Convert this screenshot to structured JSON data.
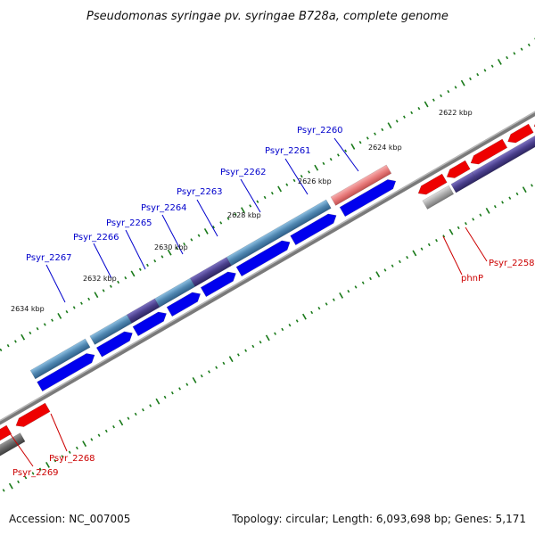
{
  "title": "Pseudomonas syringae pv. syringae B728a, complete genome",
  "footer": {
    "accession": "Accession: NC_007005",
    "topology": "Topology: circular; Length: 6,093,698 bp; Genes: 5,171"
  },
  "colors": {
    "background": "#ffffff",
    "backbone": "#7a7a7a",
    "tick": "#1a7a1a",
    "forward_gene": "#0000ee",
    "reverse_gene": "#ee0000",
    "cds_blue": "#4f86b0",
    "cds_purple": "#4a3f8c",
    "cds_pink": "#e87a7a",
    "cds_gray": "#a9a9a9",
    "label_blue": "#0000cc",
    "label_red": "#cc0000",
    "scale_text": "#111111"
  },
  "scale_labels": [
    "2622 kbp",
    "2624 kbp",
    "2626 kbp",
    "2628 kbp",
    "2630 kbp",
    "2632 kbp",
    "2634 kbp"
  ],
  "forward_labels": [
    "Psyr_2260",
    "Psyr_2261",
    "Psyr_2262",
    "Psyr_2263",
    "Psyr_2264",
    "Psyr_2265",
    "Psyr_2266",
    "Psyr_2267"
  ],
  "reverse_labels": [
    "Psyr_2258",
    "phnP",
    "Psyr_2268",
    "Psyr_2269"
  ]
}
